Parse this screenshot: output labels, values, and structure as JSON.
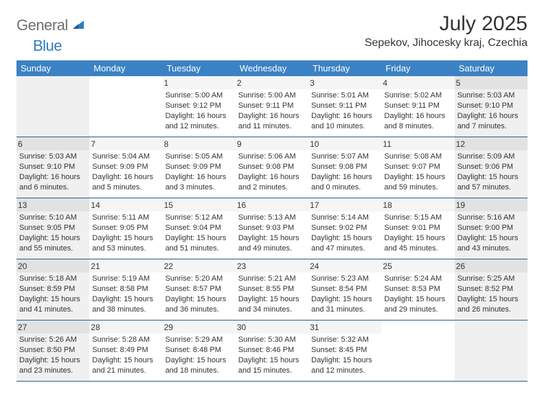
{
  "logo": {
    "gray": "General",
    "blue": "Blue"
  },
  "title": "July 2025",
  "location": "Sepekov, Jihocesky kraj, Czechia",
  "colors": {
    "header_bg": "#3b82c4",
    "header_text": "#ffffff",
    "border": "#2a5a8a",
    "shaded_cell": "#f0f0f0",
    "shaded_daynum": "#e2e2e2",
    "plain_daynum": "#f5f5f5",
    "text": "#333333",
    "logo_gray": "#6f6f6f",
    "logo_blue": "#2f7bbf"
  },
  "typography": {
    "title_fontsize": 30,
    "location_fontsize": 16,
    "header_fontsize": 13,
    "cell_fontsize": 11,
    "daynum_fontsize": 12
  },
  "dayNames": [
    "Sunday",
    "Monday",
    "Tuesday",
    "Wednesday",
    "Thursday",
    "Friday",
    "Saturday"
  ],
  "weeks": [
    [
      {
        "day": "",
        "sunrise": "",
        "sunset": "",
        "daylight": ""
      },
      {
        "day": "",
        "sunrise": "",
        "sunset": "",
        "daylight": ""
      },
      {
        "day": "1",
        "sunrise": "Sunrise: 5:00 AM",
        "sunset": "Sunset: 9:12 PM",
        "daylight": "Daylight: 16 hours and 12 minutes."
      },
      {
        "day": "2",
        "sunrise": "Sunrise: 5:00 AM",
        "sunset": "Sunset: 9:11 PM",
        "daylight": "Daylight: 16 hours and 11 minutes."
      },
      {
        "day": "3",
        "sunrise": "Sunrise: 5:01 AM",
        "sunset": "Sunset: 9:11 PM",
        "daylight": "Daylight: 16 hours and 10 minutes."
      },
      {
        "day": "4",
        "sunrise": "Sunrise: 5:02 AM",
        "sunset": "Sunset: 9:11 PM",
        "daylight": "Daylight: 16 hours and 8 minutes."
      },
      {
        "day": "5",
        "sunrise": "Sunrise: 5:03 AM",
        "sunset": "Sunset: 9:10 PM",
        "daylight": "Daylight: 16 hours and 7 minutes."
      }
    ],
    [
      {
        "day": "6",
        "sunrise": "Sunrise: 5:03 AM",
        "sunset": "Sunset: 9:10 PM",
        "daylight": "Daylight: 16 hours and 6 minutes."
      },
      {
        "day": "7",
        "sunrise": "Sunrise: 5:04 AM",
        "sunset": "Sunset: 9:09 PM",
        "daylight": "Daylight: 16 hours and 5 minutes."
      },
      {
        "day": "8",
        "sunrise": "Sunrise: 5:05 AM",
        "sunset": "Sunset: 9:09 PM",
        "daylight": "Daylight: 16 hours and 3 minutes."
      },
      {
        "day": "9",
        "sunrise": "Sunrise: 5:06 AM",
        "sunset": "Sunset: 9:08 PM",
        "daylight": "Daylight: 16 hours and 2 minutes."
      },
      {
        "day": "10",
        "sunrise": "Sunrise: 5:07 AM",
        "sunset": "Sunset: 9:08 PM",
        "daylight": "Daylight: 16 hours and 0 minutes."
      },
      {
        "day": "11",
        "sunrise": "Sunrise: 5:08 AM",
        "sunset": "Sunset: 9:07 PM",
        "daylight": "Daylight: 15 hours and 59 minutes."
      },
      {
        "day": "12",
        "sunrise": "Sunrise: 5:09 AM",
        "sunset": "Sunset: 9:06 PM",
        "daylight": "Daylight: 15 hours and 57 minutes."
      }
    ],
    [
      {
        "day": "13",
        "sunrise": "Sunrise: 5:10 AM",
        "sunset": "Sunset: 9:05 PM",
        "daylight": "Daylight: 15 hours and 55 minutes."
      },
      {
        "day": "14",
        "sunrise": "Sunrise: 5:11 AM",
        "sunset": "Sunset: 9:05 PM",
        "daylight": "Daylight: 15 hours and 53 minutes."
      },
      {
        "day": "15",
        "sunrise": "Sunrise: 5:12 AM",
        "sunset": "Sunset: 9:04 PM",
        "daylight": "Daylight: 15 hours and 51 minutes."
      },
      {
        "day": "16",
        "sunrise": "Sunrise: 5:13 AM",
        "sunset": "Sunset: 9:03 PM",
        "daylight": "Daylight: 15 hours and 49 minutes."
      },
      {
        "day": "17",
        "sunrise": "Sunrise: 5:14 AM",
        "sunset": "Sunset: 9:02 PM",
        "daylight": "Daylight: 15 hours and 47 minutes."
      },
      {
        "day": "18",
        "sunrise": "Sunrise: 5:15 AM",
        "sunset": "Sunset: 9:01 PM",
        "daylight": "Daylight: 15 hours and 45 minutes."
      },
      {
        "day": "19",
        "sunrise": "Sunrise: 5:16 AM",
        "sunset": "Sunset: 9:00 PM",
        "daylight": "Daylight: 15 hours and 43 minutes."
      }
    ],
    [
      {
        "day": "20",
        "sunrise": "Sunrise: 5:18 AM",
        "sunset": "Sunset: 8:59 PM",
        "daylight": "Daylight: 15 hours and 41 minutes."
      },
      {
        "day": "21",
        "sunrise": "Sunrise: 5:19 AM",
        "sunset": "Sunset: 8:58 PM",
        "daylight": "Daylight: 15 hours and 38 minutes."
      },
      {
        "day": "22",
        "sunrise": "Sunrise: 5:20 AM",
        "sunset": "Sunset: 8:57 PM",
        "daylight": "Daylight: 15 hours and 36 minutes."
      },
      {
        "day": "23",
        "sunrise": "Sunrise: 5:21 AM",
        "sunset": "Sunset: 8:55 PM",
        "daylight": "Daylight: 15 hours and 34 minutes."
      },
      {
        "day": "24",
        "sunrise": "Sunrise: 5:23 AM",
        "sunset": "Sunset: 8:54 PM",
        "daylight": "Daylight: 15 hours and 31 minutes."
      },
      {
        "day": "25",
        "sunrise": "Sunrise: 5:24 AM",
        "sunset": "Sunset: 8:53 PM",
        "daylight": "Daylight: 15 hours and 29 minutes."
      },
      {
        "day": "26",
        "sunrise": "Sunrise: 5:25 AM",
        "sunset": "Sunset: 8:52 PM",
        "daylight": "Daylight: 15 hours and 26 minutes."
      }
    ],
    [
      {
        "day": "27",
        "sunrise": "Sunrise: 5:26 AM",
        "sunset": "Sunset: 8:50 PM",
        "daylight": "Daylight: 15 hours and 23 minutes."
      },
      {
        "day": "28",
        "sunrise": "Sunrise: 5:28 AM",
        "sunset": "Sunset: 8:49 PM",
        "daylight": "Daylight: 15 hours and 21 minutes."
      },
      {
        "day": "29",
        "sunrise": "Sunrise: 5:29 AM",
        "sunset": "Sunset: 8:48 PM",
        "daylight": "Daylight: 15 hours and 18 minutes."
      },
      {
        "day": "30",
        "sunrise": "Sunrise: 5:30 AM",
        "sunset": "Sunset: 8:46 PM",
        "daylight": "Daylight: 15 hours and 15 minutes."
      },
      {
        "day": "31",
        "sunrise": "Sunrise: 5:32 AM",
        "sunset": "Sunset: 8:45 PM",
        "daylight": "Daylight: 15 hours and 12 minutes."
      },
      {
        "day": "",
        "sunrise": "",
        "sunset": "",
        "daylight": ""
      },
      {
        "day": "",
        "sunrise": "",
        "sunset": "",
        "daylight": ""
      }
    ]
  ]
}
